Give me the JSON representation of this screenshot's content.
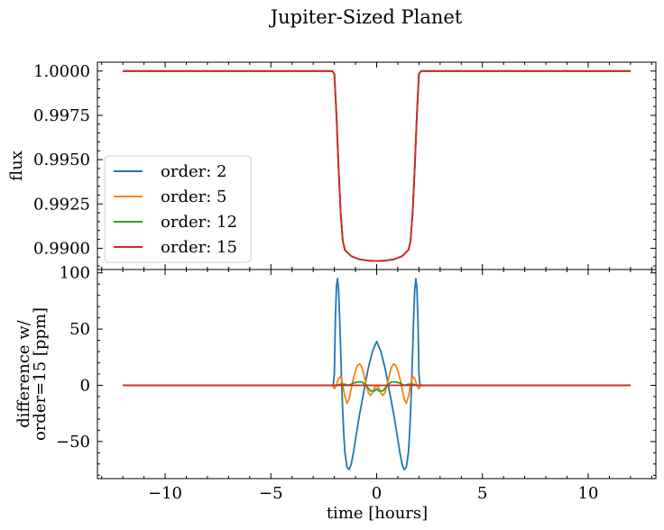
{
  "chart_data": [
    {
      "type": "line",
      "panel": "top",
      "title": "Jupiter-Sized Planet",
      "xlabel": "",
      "ylabel": "flux",
      "xlim": [
        -13.2,
        13.2
      ],
      "ylim": [
        0.9888,
        1.0005
      ],
      "yticks": [
        0.99,
        0.9925,
        0.995,
        0.9975,
        1.0
      ],
      "ytick_labels": [
        "0.9900",
        "0.9925",
        "0.9950",
        "0.9975",
        "1.0000"
      ],
      "legend": {
        "placement": "center-left",
        "entries": [
          "order: 2",
          "order: 5",
          "order: 12",
          "order: 15"
        ]
      },
      "series": [
        {
          "name": "order: 2",
          "color": "#1f77b4",
          "x": [
            -12,
            -2.1,
            -2.0,
            -1.9,
            -1.8,
            -1.7,
            -1.6,
            -1.5,
            -1.2,
            -0.8,
            -0.4,
            0,
            0.4,
            0.8,
            1.2,
            1.5,
            1.6,
            1.7,
            1.8,
            1.9,
            2.0,
            2.1,
            12
          ],
          "y": [
            1.0,
            1.0,
            0.99985,
            0.9975,
            0.9945,
            0.992,
            0.9904,
            0.9899,
            0.98955,
            0.98937,
            0.9893,
            0.98928,
            0.9893,
            0.98937,
            0.98955,
            0.9899,
            0.9904,
            0.992,
            0.9945,
            0.9975,
            0.99985,
            1.0,
            1.0
          ]
        },
        {
          "name": "order: 5",
          "color": "#ff7f0e",
          "x": [
            -12,
            -2.1,
            -2.0,
            -1.9,
            -1.8,
            -1.7,
            -1.6,
            -1.5,
            -1.2,
            -0.8,
            -0.4,
            0,
            0.4,
            0.8,
            1.2,
            1.5,
            1.6,
            1.7,
            1.8,
            1.9,
            2.0,
            2.1,
            12
          ],
          "y": [
            1.0,
            1.0,
            0.99985,
            0.9975,
            0.9945,
            0.992,
            0.9904,
            0.9899,
            0.98955,
            0.98937,
            0.9893,
            0.98928,
            0.9893,
            0.98937,
            0.98955,
            0.9899,
            0.9904,
            0.992,
            0.9945,
            0.9975,
            0.99985,
            1.0,
            1.0
          ]
        },
        {
          "name": "order: 12",
          "color": "#2ca02c",
          "x": [
            -12,
            -2.1,
            -2.0,
            -1.9,
            -1.8,
            -1.7,
            -1.6,
            -1.5,
            -1.2,
            -0.8,
            -0.4,
            0,
            0.4,
            0.8,
            1.2,
            1.5,
            1.6,
            1.7,
            1.8,
            1.9,
            2.0,
            2.1,
            12
          ],
          "y": [
            1.0,
            1.0,
            0.99985,
            0.9975,
            0.9945,
            0.992,
            0.9904,
            0.9899,
            0.98955,
            0.98937,
            0.9893,
            0.98928,
            0.9893,
            0.98937,
            0.98955,
            0.9899,
            0.9904,
            0.992,
            0.9945,
            0.9975,
            0.99985,
            1.0,
            1.0
          ]
        },
        {
          "name": "order: 15",
          "color": "#d62728",
          "x": [
            -12,
            -2.1,
            -2.0,
            -1.9,
            -1.8,
            -1.7,
            -1.6,
            -1.5,
            -1.2,
            -0.8,
            -0.4,
            0,
            0.4,
            0.8,
            1.2,
            1.5,
            1.6,
            1.7,
            1.8,
            1.9,
            2.0,
            2.1,
            12
          ],
          "y": [
            1.0,
            1.0,
            0.99985,
            0.9975,
            0.9945,
            0.992,
            0.9904,
            0.9899,
            0.98955,
            0.98937,
            0.9893,
            0.98928,
            0.9893,
            0.98937,
            0.98955,
            0.9899,
            0.9904,
            0.992,
            0.9945,
            0.9975,
            0.99985,
            1.0,
            1.0
          ]
        }
      ]
    },
    {
      "type": "line",
      "panel": "bottom",
      "xlabel": "time [hours]",
      "ylabel_lines": [
        "difference w/",
        "order=15 [ppm]"
      ],
      "xlim": [
        -13.2,
        13.2
      ],
      "ylim": [
        -83,
        103
      ],
      "xticks": [
        -10,
        -5,
        0,
        5,
        10
      ],
      "xtick_labels": [
        "−10",
        "−5",
        "0",
        "5",
        "10"
      ],
      "yticks": [
        -50,
        0,
        50,
        100
      ],
      "ytick_labels": [
        "−50",
        "0",
        "50",
        "100"
      ],
      "series": [
        {
          "name": "order: 2",
          "color": "#1f77b4",
          "x": [
            -12,
            -2.05,
            -2.0,
            -1.95,
            -1.9,
            -1.85,
            -1.8,
            -1.75,
            -1.7,
            -1.65,
            -1.6,
            -1.55,
            -1.5,
            -1.4,
            -1.3,
            -1.2,
            -1.1,
            -1.0,
            -0.8,
            -0.6,
            -0.4,
            -0.2,
            0,
            0.2,
            0.4,
            0.6,
            0.8,
            1.0,
            1.1,
            1.2,
            1.3,
            1.4,
            1.5,
            1.55,
            1.6,
            1.65,
            1.7,
            1.75,
            1.8,
            1.85,
            1.9,
            1.95,
            2.0,
            2.05,
            12
          ],
          "y": [
            0,
            0,
            10,
            60,
            88,
            95,
            85,
            60,
            30,
            0,
            -25,
            -45,
            -60,
            -73,
            -75,
            -70,
            -60,
            -48,
            -25,
            -5,
            15,
            30,
            39,
            30,
            15,
            -5,
            -25,
            -48,
            -60,
            -70,
            -75,
            -73,
            -60,
            -45,
            -25,
            0,
            30,
            60,
            85,
            95,
            88,
            60,
            10,
            0,
            0
          ]
        },
        {
          "name": "order: 5",
          "color": "#ff7f0e",
          "x": [
            -12,
            -2.1,
            -2.0,
            -1.9,
            -1.8,
            -1.7,
            -1.6,
            -1.5,
            -1.4,
            -1.3,
            -1.2,
            -1.1,
            -1.0,
            -0.9,
            -0.8,
            -0.7,
            -0.6,
            -0.5,
            -0.4,
            -0.3,
            -0.2,
            -0.1,
            0,
            0.1,
            0.2,
            0.3,
            0.4,
            0.5,
            0.6,
            0.7,
            0.8,
            0.9,
            1.0,
            1.1,
            1.2,
            1.3,
            1.4,
            1.5,
            1.6,
            1.7,
            1.8,
            1.9,
            2.0,
            2.1,
            12
          ],
          "y": [
            0,
            0,
            -3,
            0,
            6,
            8,
            0,
            -10,
            -16,
            -12,
            -3,
            6,
            13,
            18,
            19,
            16,
            9,
            1,
            -6,
            -9,
            -7,
            -2,
            0,
            -2,
            -7,
            -9,
            -6,
            1,
            9,
            16,
            19,
            18,
            13,
            6,
            -3,
            -12,
            -16,
            -10,
            0,
            8,
            6,
            0,
            -3,
            0,
            0
          ]
        },
        {
          "name": "order: 12",
          "color": "#2ca02c",
          "x": [
            -12,
            -1.9,
            -1.7,
            -1.5,
            -1.3,
            -1.1,
            -0.9,
            -0.7,
            -0.5,
            -0.3,
            -0.1,
            0,
            0.1,
            0.3,
            0.5,
            0.7,
            0.9,
            1.1,
            1.3,
            1.5,
            1.7,
            1.9,
            12
          ],
          "y": [
            0,
            0,
            1,
            1,
            0,
            2,
            3,
            3,
            0,
            -5,
            -5,
            -3,
            -5,
            -5,
            0,
            3,
            3,
            2,
            0,
            1,
            1,
            0,
            0
          ]
        },
        {
          "name": "order: 15",
          "color": "#d62728",
          "x": [
            -12,
            12
          ],
          "y": [
            0,
            0
          ]
        }
      ]
    }
  ]
}
